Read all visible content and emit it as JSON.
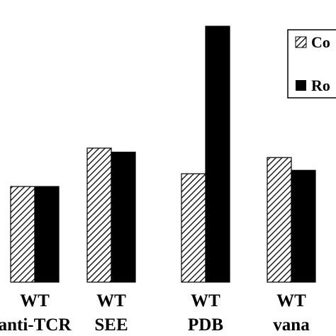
{
  "chart_data": {
    "type": "bar",
    "title": "",
    "xlabel": "",
    "ylabel": "",
    "categories": [
      {
        "line1": "WT",
        "line2": "anti-TCR"
      },
      {
        "line1": "WT",
        "line2": "SEE"
      },
      {
        "line1": "WT",
        "line2": "PDB"
      },
      {
        "line1": "WT",
        "line2": "vana"
      }
    ],
    "series": [
      {
        "name": "Co",
        "pattern": "hatched",
        "values": [
          142,
          199,
          161,
          185
        ]
      },
      {
        "name": "Ro",
        "pattern": "solid",
        "values": [
          142,
          193,
          380,
          166
        ]
      }
    ],
    "ylim": [
      0,
      400
    ],
    "grid": false,
    "legend": {
      "position": "top-right"
    },
    "colors": {
      "bar_fill": "#000000",
      "hatch_background": "#ffffff",
      "hatch_line": "#000000"
    }
  }
}
